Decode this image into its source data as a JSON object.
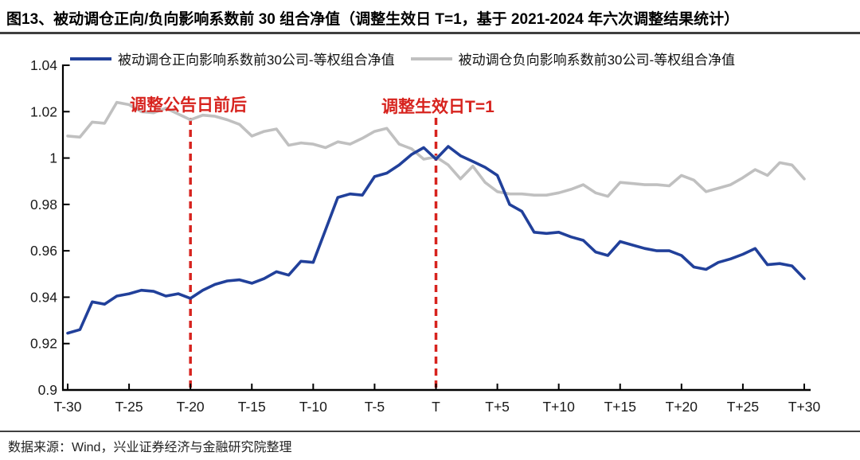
{
  "page": {
    "title": "图13、被动调仓正向/负向影响系数前 30 组合净值（调整生效日 T=1，基于 2021-2024 年六次调整结果统计）",
    "source_note": "数据来源：Wind，兴业证券经济与金融研究院整理"
  },
  "chart_data": {
    "type": "line",
    "title": "被动调仓正向/负向影响系数前30组合净值（调整生效日T=1，基于2021-2024年六次调整结果统计）",
    "xlabel": "",
    "ylabel": "",
    "x_range": [
      -30,
      30
    ],
    "x_step": 1,
    "ylim": [
      0.9,
      1.04
    ],
    "grid": false,
    "legend_position": "top",
    "y_ticks": [
      0.9,
      0.92,
      0.94,
      0.96,
      0.98,
      1.0,
      1.02,
      1.04
    ],
    "y_tick_labels": [
      "0.9",
      "0.92",
      "0.94",
      "0.96",
      "0.98",
      "1",
      "1.02",
      "1.04"
    ],
    "x_ticks": [
      -30,
      -25,
      -20,
      -15,
      -10,
      -5,
      0,
      5,
      10,
      15,
      20,
      25,
      30
    ],
    "x_tick_labels": [
      "T-30",
      "T-25",
      "T-20",
      "T-15",
      "T-10",
      "T-5",
      "T",
      "T+5",
      "T+10",
      "T+15",
      "T+20",
      "T+25",
      "T+30"
    ],
    "series": [
      {
        "name": "被动调仓正向影响系数前30公司-等权组合净值",
        "color": "#21409a",
        "values": [
          0.9245,
          0.926,
          0.938,
          0.937,
          0.9405,
          0.9415,
          0.943,
          0.9425,
          0.9405,
          0.9415,
          0.9395,
          0.943,
          0.9455,
          0.947,
          0.9475,
          0.946,
          0.948,
          0.951,
          0.9495,
          0.9555,
          0.955,
          0.969,
          0.983,
          0.9845,
          0.984,
          0.992,
          0.9935,
          0.997,
          1.0015,
          1.0045,
          0.9995,
          1.005,
          1.001,
          0.9985,
          0.996,
          0.9925,
          0.98,
          0.977,
          0.968,
          0.9675,
          0.968,
          0.966,
          0.9645,
          0.9595,
          0.958,
          0.964,
          0.9625,
          0.961,
          0.96,
          0.96,
          0.958,
          0.953,
          0.952,
          0.955,
          0.9565,
          0.9585,
          0.961,
          0.954,
          0.9545,
          0.9535,
          0.948
        ]
      },
      {
        "name": "被动调仓负向影响系数前30公司-等权组合净值",
        "color": "#c0c0c0",
        "values": [
          1.0095,
          1.009,
          1.0155,
          1.015,
          1.024,
          1.023,
          1.02,
          1.0195,
          1.0215,
          1.019,
          1.0165,
          1.0185,
          1.018,
          1.0165,
          1.0145,
          1.0095,
          1.0115,
          1.0125,
          1.0055,
          1.0065,
          1.006,
          1.0045,
          1.007,
          1.006,
          1.0085,
          1.0115,
          1.0128,
          1.006,
          1.004,
          0.9995,
          1.0005,
          0.997,
          0.991,
          0.9965,
          0.9895,
          0.9855,
          0.9845,
          0.9845,
          0.984,
          0.984,
          0.985,
          0.9865,
          0.9885,
          0.985,
          0.9835,
          0.9895,
          0.989,
          0.9885,
          0.9885,
          0.988,
          0.9925,
          0.9905,
          0.9855,
          0.987,
          0.9885,
          0.9915,
          0.995,
          0.9925,
          0.998,
          0.997,
          0.991
        ]
      }
    ],
    "vlines": [
      {
        "x": -20,
        "label": "调整公告日前后",
        "color": "#d7231e"
      },
      {
        "x": 0,
        "label": "调整生效日T=1",
        "color": "#d7231e"
      }
    ]
  }
}
